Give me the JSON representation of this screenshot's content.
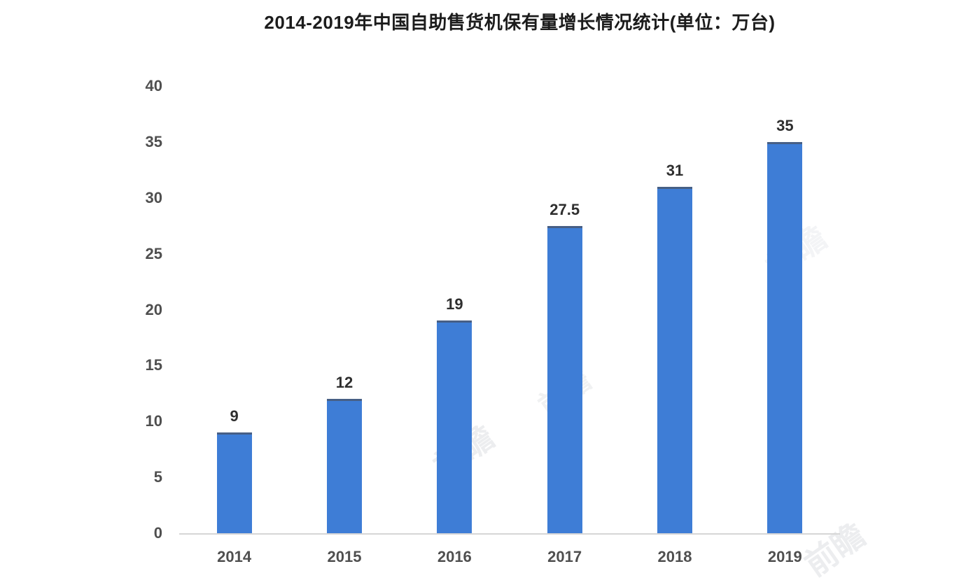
{
  "chart_data": {
    "type": "bar",
    "title": "2014-2019年中国自助售货机保有量增长情况统计(单位：万台)",
    "categories": [
      "2014",
      "2015",
      "2016",
      "2017",
      "2018",
      "2019"
    ],
    "values": [
      9,
      12,
      19,
      27.5,
      31,
      35
    ],
    "value_labels": [
      "9",
      "12",
      "19",
      "27.5",
      "31",
      "35"
    ],
    "xlabel": "",
    "ylabel": "",
    "ylim": [
      0,
      40
    ],
    "yticks": [
      0,
      5,
      10,
      15,
      20,
      25,
      30,
      35,
      40
    ],
    "grid": false,
    "legend": "none",
    "colors": {
      "bar": "#3e7dd6",
      "bar_top_edge": "#475f85",
      "axis_line": "#d6d6d6",
      "title_text": "#1c1c1c",
      "tick_text": "#4f4f4f",
      "value_label_text": "#2e2e2e"
    }
  },
  "watermark": {
    "text": "前瞻"
  }
}
